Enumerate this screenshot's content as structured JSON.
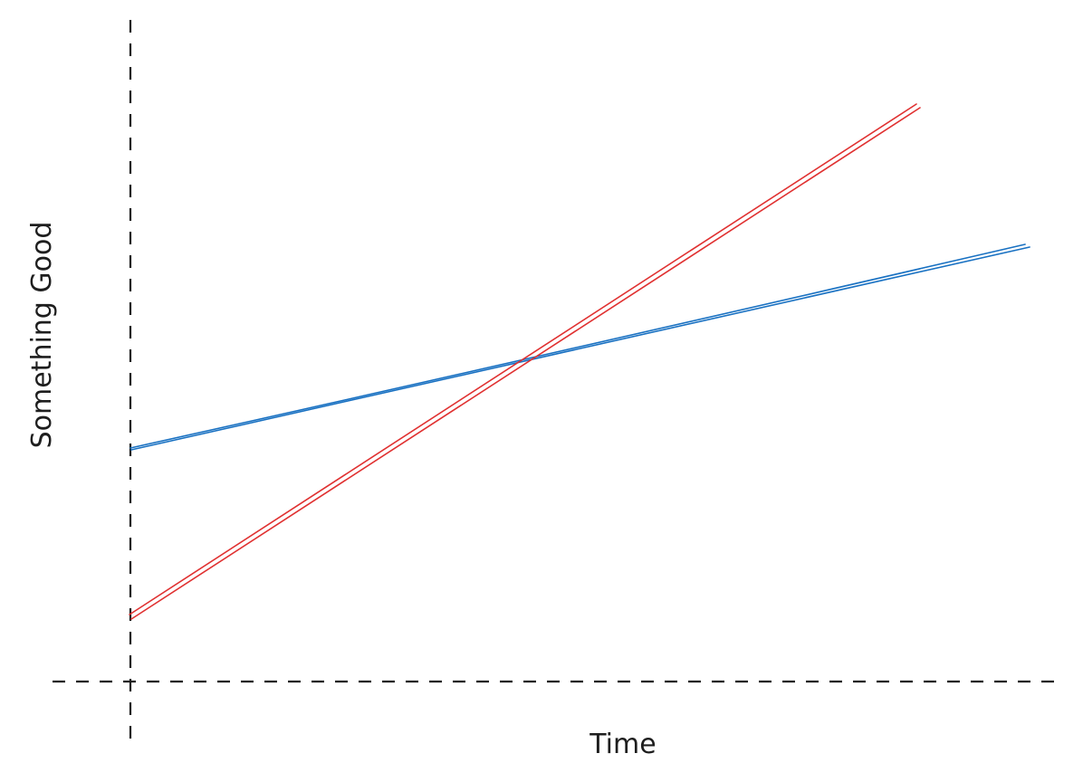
{
  "x_axis_label": "Time",
  "y_axis_label": "Something Good"
}
